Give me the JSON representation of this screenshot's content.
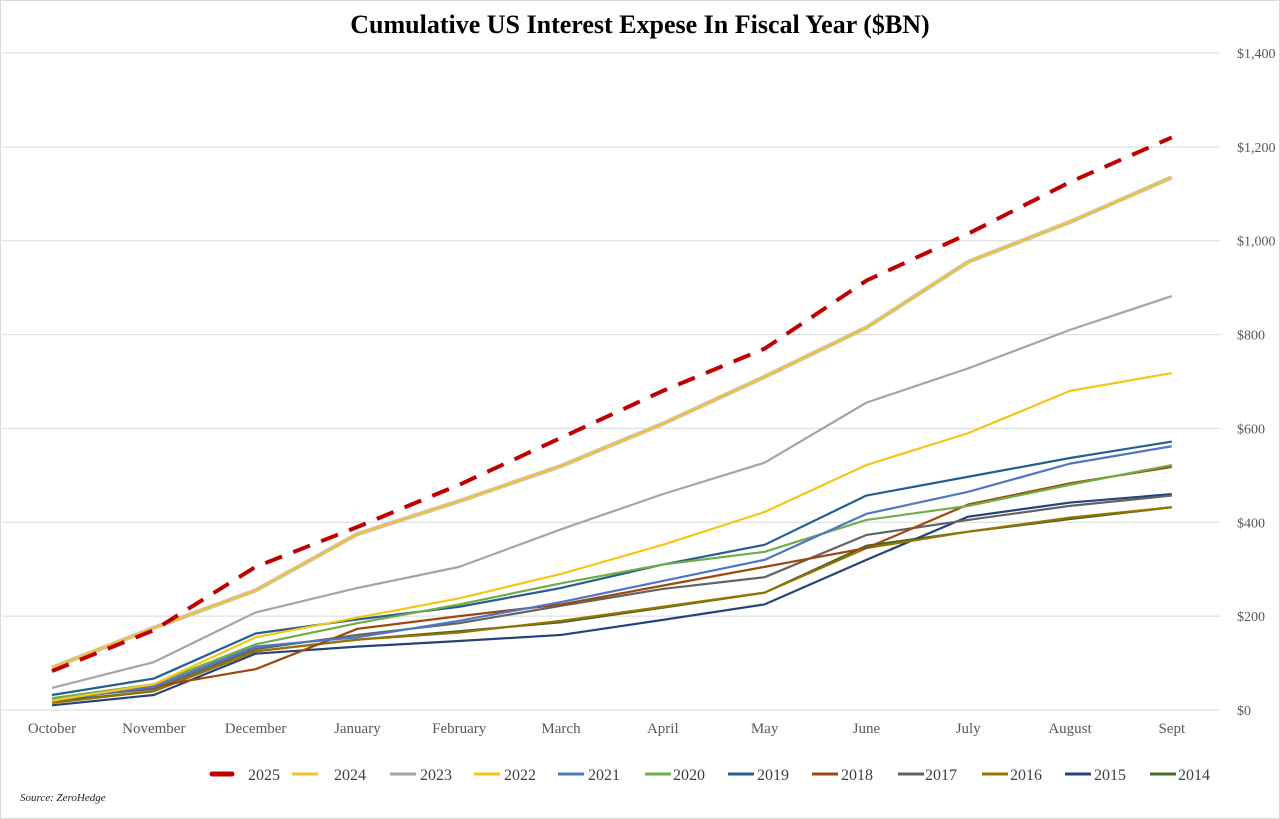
{
  "chart_data": {
    "type": "line",
    "title": "Cumulative US Interest Expese In Fiscal Year ($BN)",
    "xlabel": "",
    "ylabel": "",
    "categories": [
      "October",
      "November",
      "December",
      "January",
      "February",
      "March",
      "April",
      "May",
      "June",
      "July",
      "August",
      "Sept"
    ],
    "ylim": [
      0,
      1400
    ],
    "yticks": [
      0,
      200,
      400,
      600,
      800,
      1000,
      1200,
      1400
    ],
    "ytick_labels": [
      "$0",
      "$200",
      "$400",
      "$600",
      "$800",
      "$1,000",
      "$1,200",
      "$1,400"
    ],
    "y_axis_side": "right",
    "grid": true,
    "legend_position": "bottom",
    "series": [
      {
        "name": "2025",
        "color": "#c00000",
        "style": "dashed",
        "values": [
          83,
          170,
          305,
          390,
          480,
          580,
          680,
          770,
          915,
          1015,
          1125,
          1220
        ]
      },
      {
        "name": "2024",
        "color": "#f2c12e",
        "style": "solid",
        "values": [
          90,
          175,
          255,
          375,
          445,
          520,
          610,
          710,
          815,
          955,
          1040,
          1135
        ]
      },
      {
        "name": "2023",
        "color": "#a5a5a5",
        "style": "solid",
        "values": [
          47,
          102,
          208,
          260,
          305,
          385,
          460,
          527,
          655,
          728,
          810,
          882
        ]
      },
      {
        "name": "2022",
        "color": "#f5c518",
        "style": "solid",
        "values": [
          20,
          55,
          155,
          197,
          238,
          290,
          352,
          422,
          522,
          590,
          680,
          718
        ]
      },
      {
        "name": "2021",
        "color": "#4f75c4",
        "style": "solid",
        "values": [
          20,
          50,
          135,
          155,
          190,
          230,
          275,
          320,
          418,
          465,
          525,
          562
        ]
      },
      {
        "name": "2020",
        "color": "#70ad47",
        "style": "solid",
        "values": [
          25,
          55,
          140,
          185,
          225,
          270,
          310,
          337,
          405,
          435,
          480,
          522
        ]
      },
      {
        "name": "2019",
        "color": "#255e91",
        "style": "solid",
        "values": [
          32,
          67,
          163,
          193,
          220,
          260,
          310,
          352,
          457,
          497,
          537,
          572
        ]
      },
      {
        "name": "2018",
        "color": "#9e480e",
        "style": "solid",
        "values": [
          20,
          50,
          87,
          173,
          200,
          225,
          265,
          305,
          345,
          438,
          483,
          518
        ]
      },
      {
        "name": "2017",
        "color": "#636363",
        "style": "solid",
        "values": [
          25,
          45,
          130,
          160,
          185,
          222,
          258,
          283,
          373,
          405,
          435,
          457
        ]
      },
      {
        "name": "2016",
        "color": "#997300",
        "style": "solid",
        "values": [
          15,
          40,
          125,
          150,
          165,
          190,
          220,
          250,
          345,
          380,
          410,
          432
        ]
      },
      {
        "name": "2015",
        "color": "#264478",
        "style": "solid",
        "values": [
          10,
          32,
          120,
          135,
          147,
          160,
          192,
          225,
          320,
          412,
          442,
          460
        ]
      },
      {
        "name": "2014",
        "color": "#43682b",
        "style": "solid",
        "values": [
          18,
          40,
          125,
          150,
          168,
          187,
          218,
          250,
          350,
          380,
          407,
          432
        ]
      }
    ]
  },
  "source": "Source: ZeroHedge"
}
